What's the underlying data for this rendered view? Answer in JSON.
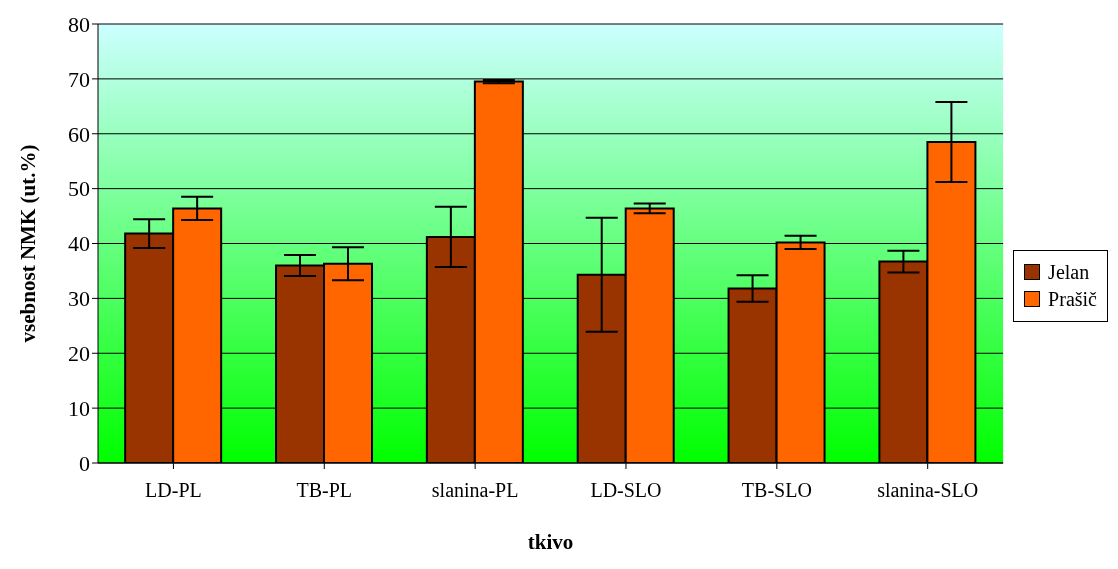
{
  "chart_data": {
    "type": "bar",
    "xlabel": "tkivo",
    "ylabel": "vsebnost NMK (ut.%)",
    "categories": [
      "LD-PL",
      "TB-PL",
      "slanina-PL",
      "LD-SLO",
      "TB-SLO",
      "slanina-SLO"
    ],
    "series": [
      {
        "name": "Jelan",
        "color": "#993300",
        "values": [
          41.8,
          36.0,
          41.2,
          34.3,
          31.8,
          36.7
        ],
        "errors": [
          2.6,
          1.9,
          5.5,
          10.4,
          2.4,
          2.0
        ]
      },
      {
        "name": "Prašič",
        "color": "#ff6600",
        "values": [
          46.4,
          36.3,
          69.5,
          46.4,
          40.2,
          58.5
        ],
        "errors": [
          2.1,
          3.0,
          0.3,
          0.9,
          1.2,
          7.3
        ]
      }
    ],
    "ylim": [
      0,
      80
    ],
    "yticks": [
      0,
      10,
      20,
      30,
      40,
      50,
      60,
      70,
      80
    ],
    "grid": "y",
    "legend": "right"
  }
}
